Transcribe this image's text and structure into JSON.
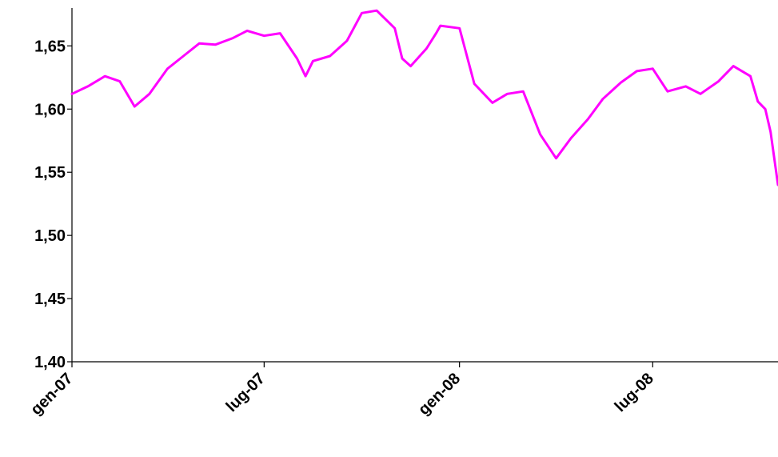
{
  "chart_data": {
    "type": "line",
    "title": "",
    "xlabel": "",
    "ylabel": "",
    "ylim": [
      1.4,
      1.68
    ],
    "y_ticks": [
      "1,40",
      "1,45",
      "1,50",
      "1,55",
      "1,60",
      "1,65"
    ],
    "y_tick_values": [
      1.4,
      1.45,
      1.5,
      1.55,
      1.6,
      1.65
    ],
    "x_ticks": [
      "gen-07",
      "lug-07",
      "gen-08",
      "lug-08"
    ],
    "x_tick_dates": [
      "2007-01-01",
      "2007-07-01",
      "2008-01-01",
      "2008-07-01"
    ],
    "xlim": [
      "2007-01-01",
      "2008-10-27"
    ],
    "grid": false,
    "series": [
      {
        "color": "#FF00FF",
        "x": [
          "2007-01-01",
          "2007-01-16",
          "2007-02-01",
          "2007-02-15",
          "2007-03-01",
          "2007-03-15",
          "2007-04-01",
          "2007-04-16",
          "2007-05-01",
          "2007-05-16",
          "2007-06-01",
          "2007-06-15",
          "2007-07-01",
          "2007-07-16",
          "2007-08-01",
          "2007-08-09",
          "2007-08-16",
          "2007-09-01",
          "2007-09-17",
          "2007-10-01",
          "2007-10-15",
          "2007-11-01",
          "2007-11-08",
          "2007-11-16",
          "2007-12-01",
          "2007-12-10",
          "2007-12-14",
          "2008-01-01",
          "2008-01-15",
          "2008-02-01",
          "2008-02-15",
          "2008-03-01",
          "2008-03-17",
          "2008-04-01",
          "2008-04-15",
          "2008-05-01",
          "2008-05-15",
          "2008-06-01",
          "2008-06-16",
          "2008-07-01",
          "2008-07-15",
          "2008-08-01",
          "2008-08-15",
          "2008-09-01",
          "2008-09-15",
          "2008-10-01",
          "2008-10-08",
          "2008-10-15",
          "2008-10-20",
          "2008-10-27"
        ],
        "values": [
          1.612,
          1.618,
          1.626,
          1.622,
          1.602,
          1.612,
          1.632,
          1.642,
          1.652,
          1.651,
          1.656,
          1.662,
          1.658,
          1.66,
          1.64,
          1.626,
          1.638,
          1.642,
          1.654,
          1.676,
          1.678,
          1.664,
          1.64,
          1.634,
          1.648,
          1.66,
          1.666,
          1.664,
          1.62,
          1.605,
          1.612,
          1.614,
          1.58,
          1.561,
          1.577,
          1.592,
          1.608,
          1.621,
          1.63,
          1.632,
          1.614,
          1.618,
          1.612,
          1.622,
          1.634,
          1.626,
          1.606,
          1.6,
          1.582,
          1.54
        ]
      }
    ]
  }
}
